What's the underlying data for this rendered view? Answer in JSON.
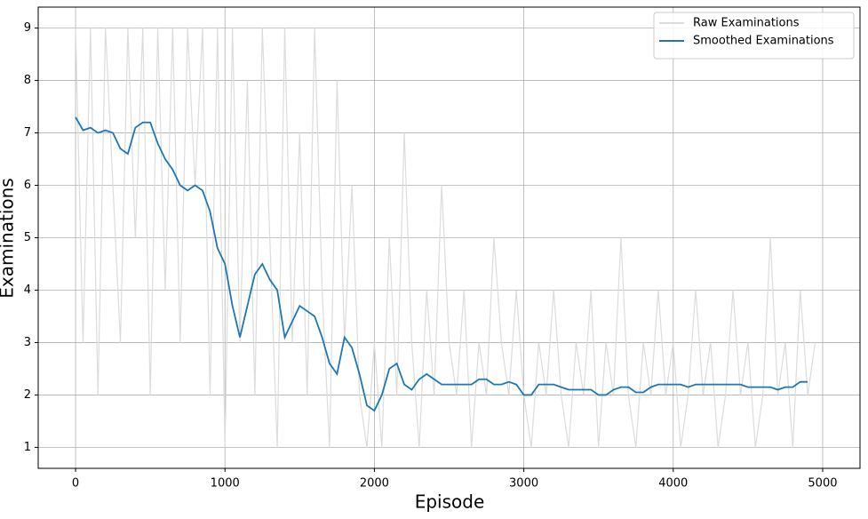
{
  "chart_data": {
    "type": "line",
    "xlabel": "Episode",
    "ylabel": "Examinations",
    "xlim": [
      -250,
      5250
    ],
    "ylim": [
      0.6,
      9.4
    ],
    "xticks": [
      0,
      1000,
      2000,
      3000,
      4000,
      5000
    ],
    "yticks": [
      1,
      2,
      3,
      4,
      5,
      6,
      7,
      8,
      9
    ],
    "grid": true,
    "legend": "upper right",
    "x": [
      0,
      50,
      100,
      150,
      200,
      250,
      300,
      350,
      400,
      450,
      500,
      550,
      600,
      650,
      700,
      750,
      800,
      850,
      900,
      950,
      1000,
      1050,
      1100,
      1150,
      1200,
      1250,
      1300,
      1350,
      1400,
      1450,
      1500,
      1550,
      1600,
      1650,
      1700,
      1750,
      1800,
      1850,
      1900,
      1950,
      2000,
      2050,
      2100,
      2150,
      2200,
      2250,
      2300,
      2350,
      2400,
      2450,
      2500,
      2550,
      2600,
      2650,
      2700,
      2750,
      2800,
      2850,
      2900,
      2950,
      3000,
      3050,
      3100,
      3150,
      3200,
      3250,
      3300,
      3350,
      3400,
      3450,
      3500,
      3550,
      3600,
      3650,
      3700,
      3750,
      3800,
      3850,
      3900,
      3950,
      4000,
      4050,
      4100,
      4150,
      4200,
      4250,
      4300,
      4350,
      4400,
      4450,
      4500,
      4550,
      4600,
      4650,
      4700,
      4750,
      4800,
      4850,
      4900,
      4950
    ],
    "series": [
      {
        "name": "Raw Examinations",
        "color": "#dcdcdc",
        "values": [
          9,
          3,
          9,
          2,
          9,
          6,
          3,
          9,
          5,
          9,
          2,
          9,
          4,
          9,
          3,
          9,
          6,
          9,
          2,
          9,
          1,
          9,
          3,
          8,
          2,
          9,
          5,
          1,
          9,
          3,
          7,
          2,
          9,
          4,
          1,
          8,
          3,
          6,
          2,
          1,
          3,
          1,
          5,
          2,
          7,
          3,
          1,
          4,
          2,
          6,
          3,
          2,
          4,
          1,
          3,
          2,
          5,
          3,
          2,
          4,
          2,
          1,
          3,
          2,
          4,
          2,
          1,
          3,
          2,
          4,
          1,
          3,
          2,
          5,
          2,
          1,
          3,
          2,
          4,
          2,
          3,
          1,
          2,
          4,
          2,
          3,
          1,
          2,
          4,
          2,
          3,
          1,
          2,
          5,
          2,
          3,
          1,
          4,
          2,
          3
        ]
      },
      {
        "name": "Smoothed Examinations",
        "color": "#1f77b4",
        "values": [
          7.3,
          7.05,
          7.1,
          7.0,
          7.05,
          7.0,
          6.7,
          6.6,
          7.1,
          7.2,
          7.2,
          6.8,
          6.5,
          6.3,
          6.0,
          5.9,
          6.0,
          5.9,
          5.5,
          4.8,
          4.5,
          3.7,
          3.1,
          3.7,
          4.3,
          4.5,
          4.2,
          4.0,
          3.1,
          3.4,
          3.7,
          3.6,
          3.5,
          3.1,
          2.6,
          2.4,
          3.1,
          2.9,
          2.4,
          1.8,
          1.7,
          2.0,
          2.5,
          2.6,
          2.2,
          2.1,
          2.3,
          2.4,
          2.3,
          2.2,
          2.2,
          2.2,
          2.2,
          2.2,
          2.3,
          2.3,
          2.2,
          2.2,
          2.25,
          2.2,
          2.0,
          2.0,
          2.2,
          2.2,
          2.2,
          2.15,
          2.1,
          2.1,
          2.1,
          2.1,
          2.0,
          2.0,
          2.1,
          2.15,
          2.15,
          2.05,
          2.05,
          2.15,
          2.2,
          2.2,
          2.2,
          2.2,
          2.15,
          2.2,
          2.2,
          2.2,
          2.2,
          2.2,
          2.2,
          2.2,
          2.15,
          2.15,
          2.15,
          2.15,
          2.1,
          2.15,
          2.15,
          2.25,
          2.25,
          null
        ]
      }
    ]
  }
}
